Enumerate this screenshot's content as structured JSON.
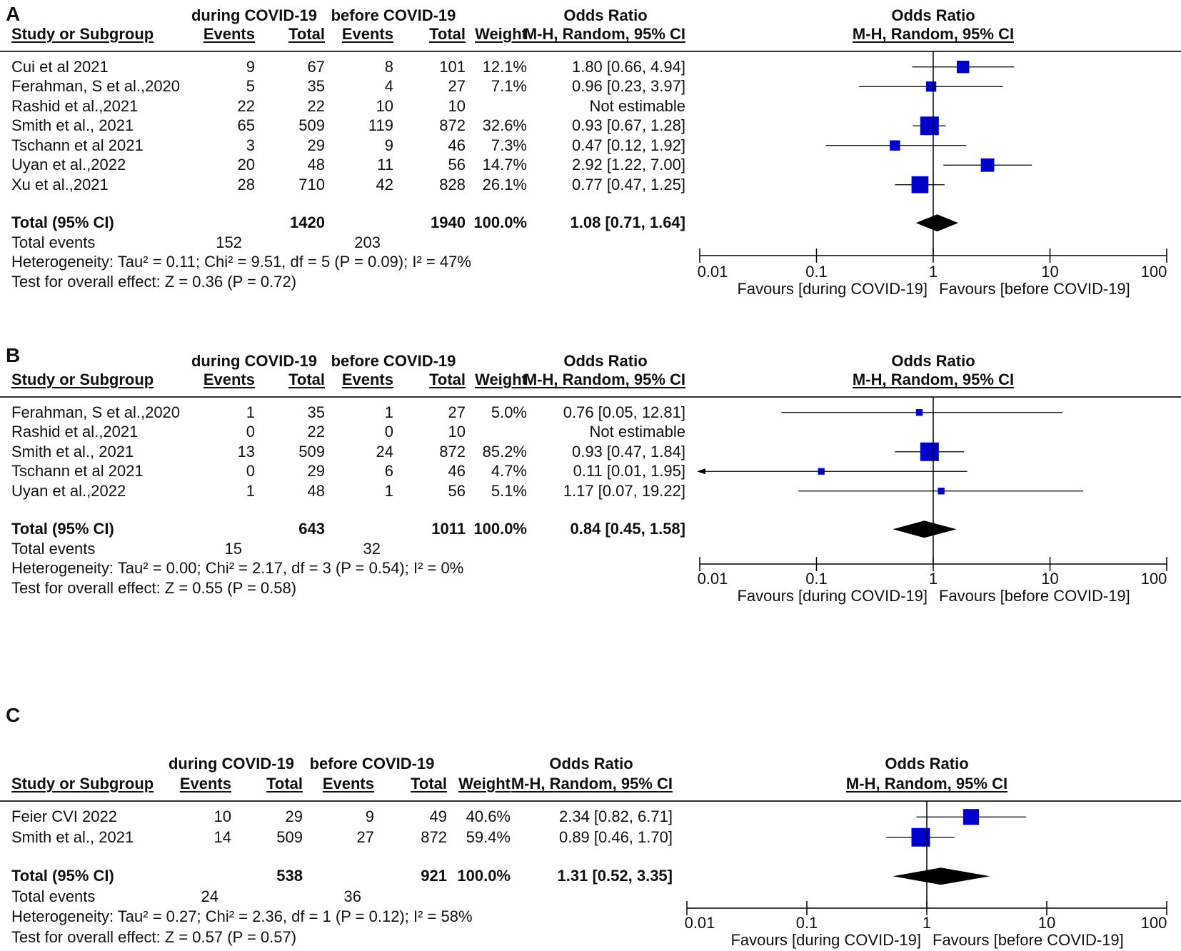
{
  "columns": {
    "study": "Study or Subgroup",
    "events": "Events",
    "total": "Total",
    "weight": "Weight",
    "or_title": "Odds Ratio",
    "or_method": "M-H, Random, 95% CI",
    "group_during": "during COVID-19",
    "group_before": "before COVID-19"
  },
  "axis": {
    "ticks": [
      "0.01",
      "0.1",
      "1",
      "10",
      "100"
    ],
    "favours_left": "Favours [during COVID-19]",
    "favours_right": "Favours [before COVID-19]"
  },
  "colors": {
    "marker": "#0000cc",
    "line": "#000000"
  },
  "chart_data": [
    {
      "type": "forest",
      "panel": "A",
      "xscale": "log",
      "xlim": [
        0.01,
        100
      ],
      "studies": [
        {
          "name": "Cui et al 2021",
          "e1": "9",
          "n1": "67",
          "e2": "8",
          "n2": "101",
          "weight": "12.1%",
          "ci_text": "1.80 [0.66, 4.94]",
          "or": 1.8,
          "lo": 0.66,
          "hi": 4.94,
          "w": 12.1
        },
        {
          "name": "Ferahman, S et al.,2020",
          "e1": "5",
          "n1": "35",
          "e2": "4",
          "n2": "27",
          "weight": "7.1%",
          "ci_text": "0.96 [0.23, 3.97]",
          "or": 0.96,
          "lo": 0.23,
          "hi": 3.97,
          "w": 7.1
        },
        {
          "name": "Rashid et al.,2021",
          "e1": "22",
          "n1": "22",
          "e2": "10",
          "n2": "10",
          "weight": "",
          "ci_text": "Not estimable",
          "or": null,
          "lo": null,
          "hi": null,
          "w": 0
        },
        {
          "name": "Smith    et al.,  2021",
          "e1": "65",
          "n1": "509",
          "e2": "119",
          "n2": "872",
          "weight": "32.6%",
          "ci_text": "0.93 [0.67, 1.28]",
          "or": 0.93,
          "lo": 0.67,
          "hi": 1.28,
          "w": 32.6
        },
        {
          "name": "Tschann et al  2021",
          "e1": "3",
          "n1": "29",
          "e2": "9",
          "n2": "46",
          "weight": "7.3%",
          "ci_text": "0.47 [0.12, 1.92]",
          "or": 0.47,
          "lo": 0.12,
          "hi": 1.92,
          "w": 7.3
        },
        {
          "name": "Uyan et al.,2022",
          "e1": "20",
          "n1": "48",
          "e2": "11",
          "n2": "56",
          "weight": "14.7%",
          "ci_text": "2.92 [1.22, 7.00]",
          "or": 2.92,
          "lo": 1.22,
          "hi": 7.0,
          "w": 14.7
        },
        {
          "name": "Xu et al.,2021",
          "e1": "28",
          "n1": "710",
          "e2": "42",
          "n2": "828",
          "weight": "26.1%",
          "ci_text": "0.77 [0.47, 1.25]",
          "or": 0.77,
          "lo": 0.47,
          "hi": 1.25,
          "w": 26.1
        }
      ],
      "total": {
        "label": "Total (95% CI)",
        "n1": "1420",
        "n2": "1940",
        "weight": "100.0%",
        "ci_text": "1.08 [0.71, 1.64]",
        "or": 1.08,
        "lo": 0.71,
        "hi": 1.64
      },
      "total_events": {
        "label": "Total events",
        "e1": "152",
        "e2": "203"
      },
      "heterogeneity": "Heterogeneity: Tau² = 0.11; Chi² = 9.51, df = 5 (P = 0.09); I² = 47%",
      "overall_effect": "Test for overall effect: Z = 0.36 (P = 0.72)"
    },
    {
      "type": "forest",
      "panel": "B",
      "xscale": "log",
      "xlim": [
        0.01,
        100
      ],
      "studies": [
        {
          "name": "Ferahman, S et al.,2020",
          "e1": "1",
          "n1": "35",
          "e2": "1",
          "n2": "27",
          "weight": "5.0%",
          "ci_text": "0.76 [0.05, 12.81]",
          "or": 0.76,
          "lo": 0.05,
          "hi": 12.81,
          "w": 5.0
        },
        {
          "name": "Rashid et al.,2021",
          "e1": "0",
          "n1": "22",
          "e2": "0",
          "n2": "10",
          "weight": "",
          "ci_text": "Not estimable",
          "or": null,
          "lo": null,
          "hi": null,
          "w": 0
        },
        {
          "name": "Smith    et al.,  2021",
          "e1": "13",
          "n1": "509",
          "e2": "24",
          "n2": "872",
          "weight": "85.2%",
          "ci_text": "0.93 [0.47, 1.84]",
          "or": 0.93,
          "lo": 0.47,
          "hi": 1.84,
          "w": 85.2
        },
        {
          "name": "Tschann et al  2021",
          "e1": "0",
          "n1": "29",
          "e2": "6",
          "n2": "46",
          "weight": "4.7%",
          "ci_text": "0.11 [0.01, 1.95]",
          "or": 0.11,
          "lo": 0.01,
          "hi": 1.95,
          "w": 4.7
        },
        {
          "name": "Uyan et al.,2022",
          "e1": "1",
          "n1": "48",
          "e2": "1",
          "n2": "56",
          "weight": "5.1%",
          "ci_text": "1.17 [0.07, 19.22]",
          "or": 1.17,
          "lo": 0.07,
          "hi": 19.22,
          "w": 5.1
        }
      ],
      "total": {
        "label": "Total (95% CI)",
        "n1": "643",
        "n2": "1011",
        "weight": "100.0%",
        "ci_text": "0.84 [0.45, 1.58]",
        "or": 0.84,
        "lo": 0.45,
        "hi": 1.58
      },
      "total_events": {
        "label": "Total events",
        "e1": "15",
        "e2": "32"
      },
      "heterogeneity": "Heterogeneity: Tau² = 0.00; Chi² = 2.17, df = 3 (P = 0.54); I² = 0%",
      "overall_effect": "Test for overall effect: Z = 0.55 (P = 0.58)"
    },
    {
      "type": "forest",
      "panel": "C",
      "xscale": "log",
      "xlim": [
        0.01,
        100
      ],
      "studies": [
        {
          "name": "Feier CVI 2022",
          "e1": "10",
          "n1": "29",
          "e2": "9",
          "n2": "49",
          "weight": "40.6%",
          "ci_text": "2.34 [0.82, 6.71]",
          "or": 2.34,
          "lo": 0.82,
          "hi": 6.71,
          "w": 40.6
        },
        {
          "name": "Smith    et al.,  2021",
          "e1": "14",
          "n1": "509",
          "e2": "27",
          "n2": "872",
          "weight": "59.4%",
          "ci_text": "0.89 [0.46, 1.70]",
          "or": 0.89,
          "lo": 0.46,
          "hi": 1.7,
          "w": 59.4
        }
      ],
      "total": {
        "label": "Total (95% CI)",
        "n1": "538",
        "n2": "921",
        "weight": "100.0%",
        "ci_text": "1.31 [0.52, 3.35]",
        "or": 1.31,
        "lo": 0.52,
        "hi": 3.35
      },
      "total_events": {
        "label": "Total events",
        "e1": "24",
        "e2": "36"
      },
      "heterogeneity": "Heterogeneity: Tau² = 0.27; Chi² = 2.36, df = 1 (P = 0.12); I² = 58%",
      "overall_effect": "Test for overall effect: Z = 0.57 (P = 0.57)"
    }
  ]
}
